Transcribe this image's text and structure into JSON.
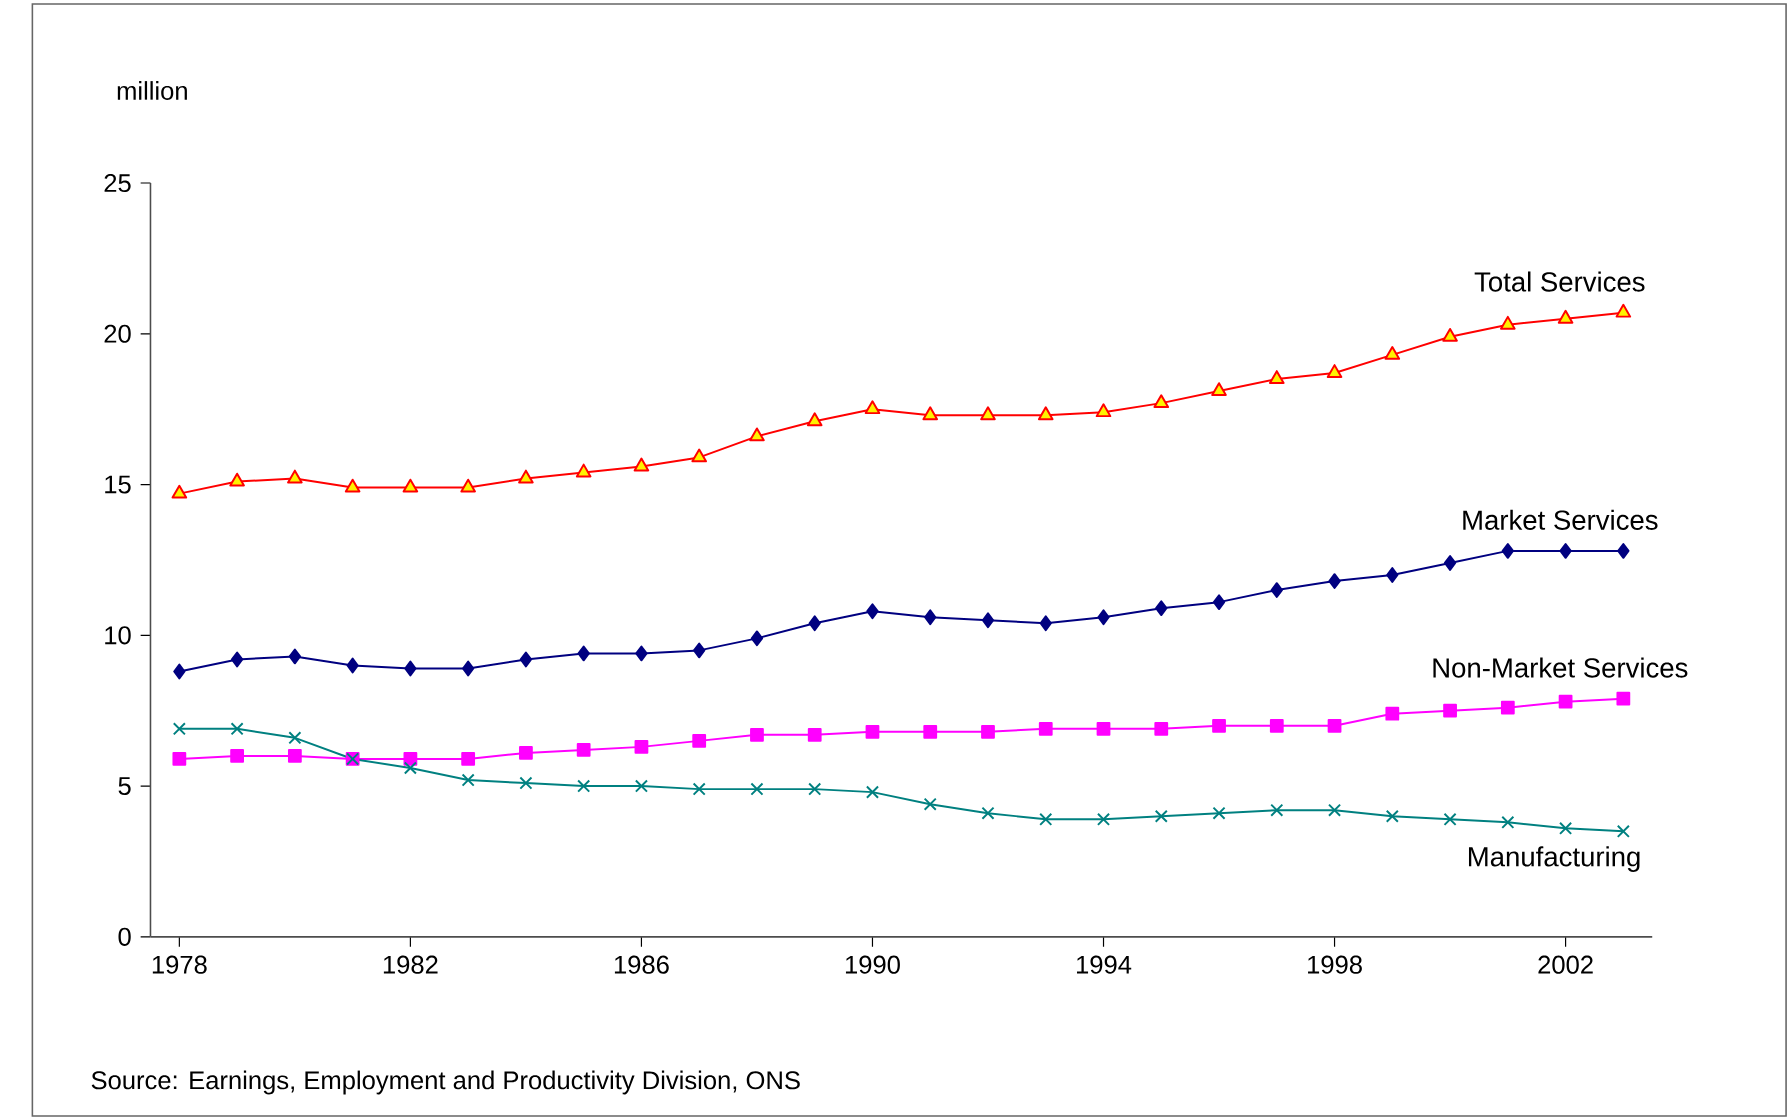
{
  "chart_data": {
    "type": "line",
    "ylabel": "million",
    "x": [
      1978,
      1979,
      1980,
      1981,
      1982,
      1983,
      1984,
      1985,
      1986,
      1987,
      1988,
      1989,
      1990,
      1991,
      1992,
      1993,
      1994,
      1995,
      1996,
      1997,
      1998,
      1999,
      2000,
      2001,
      2002,
      2003
    ],
    "series": [
      {
        "name": "Total Services",
        "color": "#ff0000",
        "marker": "triangle",
        "values": [
          14.7,
          15.1,
          15.2,
          14.9,
          14.9,
          14.9,
          15.2,
          15.4,
          15.6,
          15.9,
          16.6,
          17.1,
          17.5,
          17.3,
          17.3,
          17.3,
          17.4,
          17.7,
          18.1,
          18.5,
          18.7,
          19.3,
          19.9,
          20.3,
          20.5,
          20.7
        ]
      },
      {
        "name": "Market Services",
        "color": "#000080",
        "marker": "diamond",
        "values": [
          8.8,
          9.2,
          9.3,
          9.0,
          8.9,
          8.9,
          9.2,
          9.4,
          9.4,
          9.5,
          9.9,
          10.4,
          10.8,
          10.6,
          10.5,
          10.4,
          10.6,
          10.9,
          11.1,
          11.5,
          11.8,
          12.0,
          12.4,
          12.8,
          12.8,
          12.8
        ]
      },
      {
        "name": "Non-Market Services",
        "color": "#ff00ff",
        "marker": "square",
        "values": [
          5.9,
          6.0,
          6.0,
          5.9,
          5.9,
          5.9,
          6.1,
          6.2,
          6.3,
          6.5,
          6.7,
          6.7,
          6.8,
          6.8,
          6.8,
          6.9,
          6.9,
          6.9,
          7.0,
          7.0,
          7.0,
          7.4,
          7.5,
          7.6,
          7.8,
          7.9
        ]
      },
      {
        "name": "Manufacturing",
        "color": "#008080",
        "marker": "cross",
        "values": [
          6.9,
          6.9,
          6.6,
          5.9,
          5.6,
          5.2,
          5.1,
          5.0,
          5.0,
          4.9,
          4.9,
          4.9,
          4.8,
          4.4,
          4.1,
          3.9,
          3.9,
          4.0,
          4.1,
          4.2,
          4.2,
          4.0,
          3.9,
          3.8,
          3.6,
          3.5
        ]
      }
    ],
    "xlim": [
      1977.5,
      2003.5
    ],
    "xticks": [
      1978,
      1982,
      1986,
      1990,
      1994,
      1998,
      2002
    ],
    "ylim": [
      0,
      25
    ],
    "yticks": [
      0,
      5,
      10,
      15,
      20,
      25
    ],
    "grid": false,
    "legend": false,
    "line_style": "solid",
    "annotations": [
      "Source: Earnings, Employment and Productivity Division, ONS"
    ]
  }
}
